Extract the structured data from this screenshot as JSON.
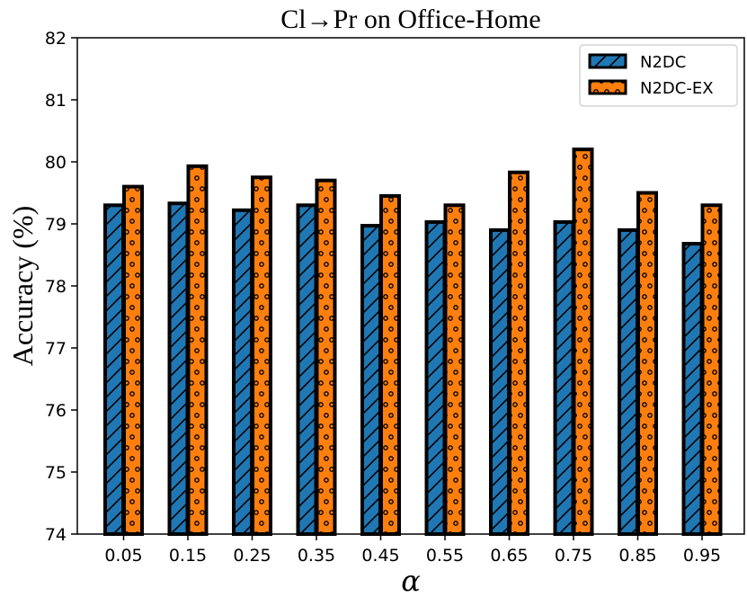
{
  "chart_data": {
    "type": "bar",
    "title": "Cl→Pr on Office-Home",
    "xlabel": "α",
    "ylabel": "Accuracy (%)",
    "categories": [
      "0.05",
      "0.15",
      "0.25",
      "0.35",
      "0.45",
      "0.55",
      "0.65",
      "0.75",
      "0.85",
      "0.95"
    ],
    "series": [
      {
        "name": "N2DC",
        "color": "#1f77b4",
        "pattern": "hatch",
        "values": [
          79.3,
          79.33,
          79.22,
          79.3,
          78.97,
          79.03,
          78.9,
          79.03,
          78.9,
          78.68
        ]
      },
      {
        "name": "N2DC-EX",
        "color": "#ff7f0e",
        "pattern": "dots",
        "values": [
          79.6,
          79.93,
          79.75,
          79.7,
          79.45,
          79.3,
          79.83,
          80.2,
          79.5,
          79.3
        ]
      }
    ],
    "ylim": [
      74,
      82
    ],
    "yticks": [
      "74",
      "75",
      "76",
      "77",
      "78",
      "79",
      "80",
      "81",
      "82"
    ],
    "grid": false,
    "legend": "top-right"
  }
}
